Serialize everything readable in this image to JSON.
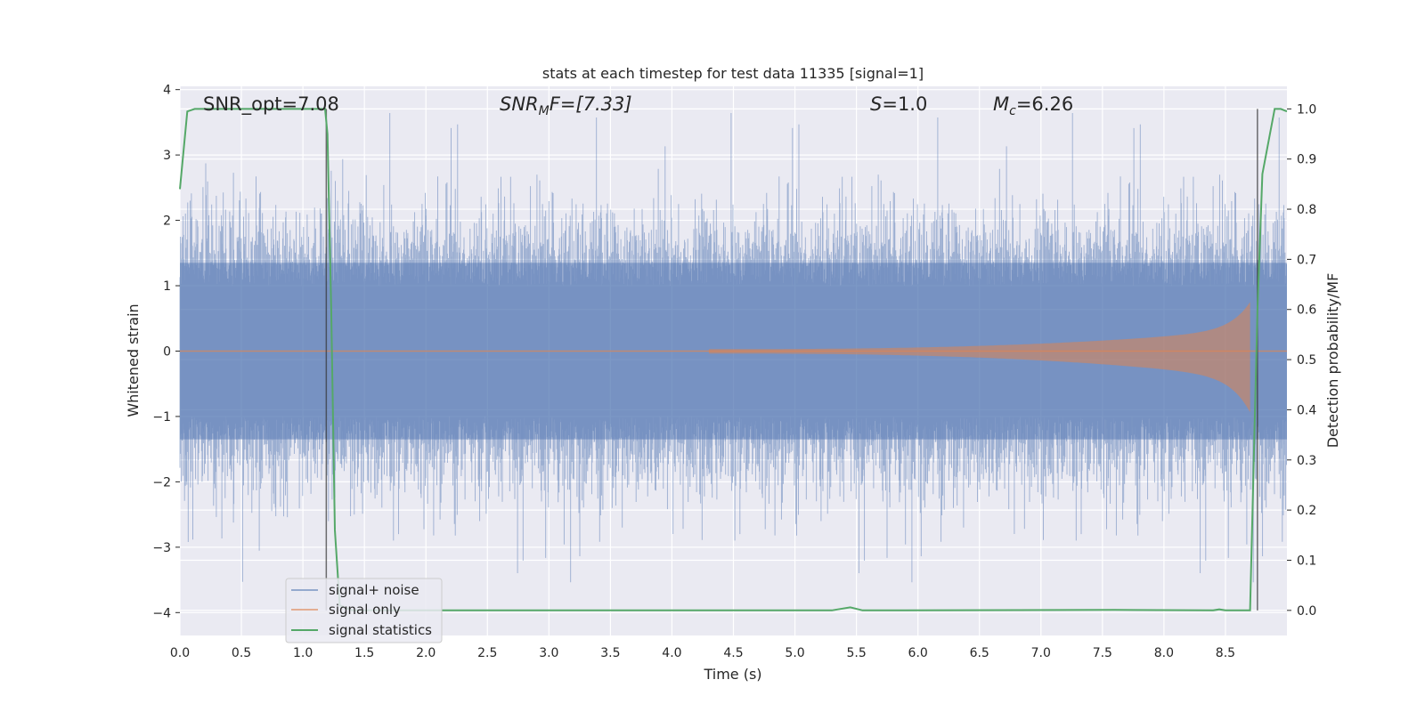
{
  "chart_data": {
    "type": "line",
    "title": "stats at each timestep for test data 11335 [signal=1]",
    "xlabel": "Time (s)",
    "ylabel": "Whitened strain",
    "y2label": "Detection probability/MF",
    "xlim": [
      0.0,
      9.0
    ],
    "ylim": [
      -4.35,
      4.05
    ],
    "y2lim": [
      -0.05,
      1.045
    ],
    "x_ticks": [
      0.0,
      0.5,
      1.0,
      1.5,
      2.0,
      2.5,
      3.0,
      3.5,
      4.0,
      4.5,
      5.0,
      5.5,
      6.0,
      6.5,
      7.0,
      7.5,
      8.0,
      8.5
    ],
    "x_tick_labels": [
      "0.0",
      "0.5",
      "1.0",
      "1.5",
      "2.0",
      "2.5",
      "3.0",
      "3.5",
      "4.0",
      "4.5",
      "5.0",
      "5.5",
      "6.0",
      "6.5",
      "7.0",
      "7.5",
      "8.0",
      "8.5"
    ],
    "y_ticks": [
      4,
      3,
      2,
      1,
      0,
      -1,
      -2,
      -3,
      -4
    ],
    "y_tick_labels": [
      "4",
      "3",
      "2",
      "1",
      "0",
      "−1",
      "−2",
      "−3",
      "−4"
    ],
    "y2_ticks": [
      1.0,
      0.9,
      0.8,
      0.7,
      0.6,
      0.5,
      0.4,
      0.3,
      0.2,
      0.1,
      0.0
    ],
    "y2_tick_labels": [
      "1.0",
      "0.9",
      "0.8",
      "0.7",
      "0.6",
      "0.5",
      "0.4",
      "0.3",
      "0.2",
      "0.1",
      "0.0"
    ],
    "grid": true,
    "legend_position": "lower-left",
    "annotations": {
      "snr_opt": "SNR_opt=7.08",
      "snr_mf_sym": "SNR",
      "snr_mf_sub": "M",
      "snr_mf_rest": "F=[7.33]",
      "s_sym": "S",
      "s_rest": "=1.0",
      "mc_sym": "M",
      "mc_sub": "c",
      "mc_rest": "=6.26"
    },
    "vertical_lines_x": [
      1.19,
      8.76
    ],
    "series": [
      {
        "name": "signal+ noise",
        "color": "#4c72b0",
        "kind": "noise",
        "typical_amplitude": 1.45,
        "max": 3.7,
        "min": -3.95
      },
      {
        "name": "signal only",
        "color": "#dd8452",
        "kind": "chirp",
        "start_x": 4.3,
        "end_x": 8.7,
        "peak_amplitude": 0.75
      },
      {
        "name": "signal statistics",
        "color": "#55a868",
        "axis": "right",
        "x": [
          0.0,
          0.06,
          0.12,
          0.5,
          1.0,
          1.18,
          1.2,
          1.23,
          1.26,
          1.3,
          1.4,
          5.3,
          5.45,
          5.55,
          7.6,
          8.4,
          8.45,
          8.5,
          8.7,
          8.76,
          8.8,
          8.9,
          8.95,
          9.0
        ],
        "y": [
          0.84,
          0.995,
          1.0,
          1.0,
          1.0,
          1.0,
          0.95,
          0.6,
          0.16,
          0.01,
          0.0,
          0.0,
          0.006,
          0.0,
          0.001,
          0.0,
          0.002,
          0.0,
          0.0,
          0.6,
          0.87,
          1.0,
          1.0,
          0.995
        ]
      }
    ]
  }
}
